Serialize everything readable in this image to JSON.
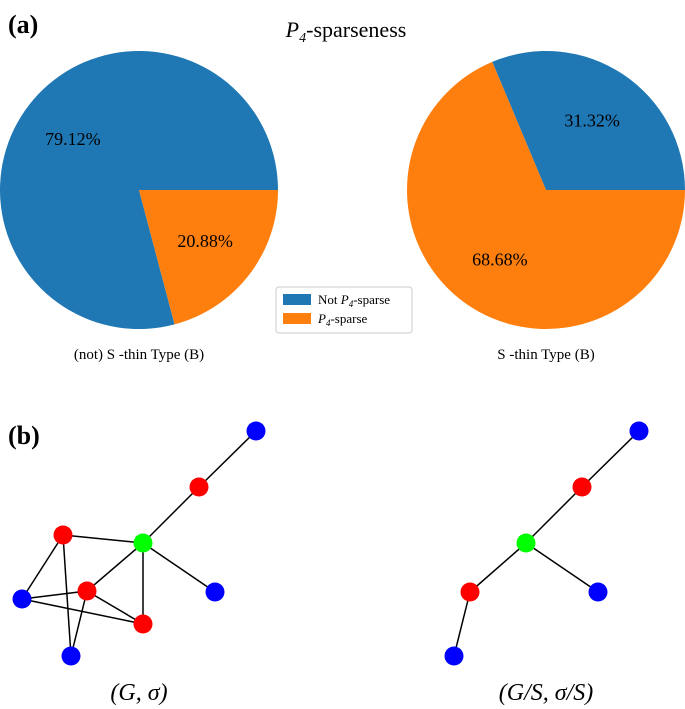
{
  "panel_a": {
    "tag": "(a)",
    "title_prefix": "P",
    "title_sub": "4",
    "title_suffix": "-sparseness"
  },
  "panel_b": {
    "tag": "(b)",
    "left_caption": "(G, σ)",
    "right_caption": "(G/S, σ/S)"
  },
  "legend": {
    "not_prefix": "Not ",
    "p": "P",
    "sub": "4",
    "suffix": "-sparse"
  },
  "colors": {
    "not_sparse": "#1f77b4",
    "sparse": "#ff7f0e",
    "node_blue": "#0000ff",
    "node_red": "#ff0000",
    "node_green": "#00ff00"
  },
  "chart_data": [
    {
      "type": "pie",
      "title": "(not) S-thin Type (B)",
      "xlabel": "(not) S -thin Type (B)",
      "slices": [
        {
          "label": "Not P4-sparse",
          "value": 79.12,
          "text": "79.12%"
        },
        {
          "label": "P4-sparse",
          "value": 20.88,
          "text": "20.88%"
        }
      ],
      "legend": [
        "Not P4-sparse",
        "P4-sparse"
      ]
    },
    {
      "type": "pie",
      "title": "S-thin Type (B)",
      "xlabel": "S -thin Type (B)",
      "slices": [
        {
          "label": "Not P4-sparse",
          "value": 31.32,
          "text": "31.32%"
        },
        {
          "label": "P4-sparse",
          "value": 68.68,
          "text": "68.68%"
        }
      ],
      "legend": [
        "Not P4-sparse",
        "P4-sparse"
      ]
    }
  ],
  "graphs": {
    "left": {
      "nodes": [
        {
          "id": "b1",
          "color": "blue"
        },
        {
          "id": "r1",
          "color": "red"
        },
        {
          "id": "g",
          "color": "green"
        },
        {
          "id": "b2",
          "color": "blue"
        },
        {
          "id": "r2",
          "color": "red"
        },
        {
          "id": "r3",
          "color": "red"
        },
        {
          "id": "b3",
          "color": "blue"
        },
        {
          "id": "r4",
          "color": "red"
        },
        {
          "id": "b4",
          "color": "blue"
        }
      ],
      "edges": [
        [
          "b1",
          "r1"
        ],
        [
          "r1",
          "g"
        ],
        [
          "g",
          "b2"
        ],
        [
          "g",
          "r2"
        ],
        [
          "g",
          "r3"
        ],
        [
          "g",
          "r4"
        ],
        [
          "r2",
          "b3"
        ],
        [
          "r2",
          "b4"
        ],
        [
          "b3",
          "r3"
        ],
        [
          "b3",
          "r4"
        ],
        [
          "b4",
          "r4"
        ],
        [
          "r4",
          "r3"
        ]
      ]
    },
    "right": {
      "nodes": [
        {
          "id": "b1",
          "color": "blue"
        },
        {
          "id": "r1",
          "color": "red"
        },
        {
          "id": "g",
          "color": "green"
        },
        {
          "id": "b2",
          "color": "blue"
        },
        {
          "id": "r2",
          "color": "red"
        },
        {
          "id": "b3",
          "color": "blue"
        }
      ],
      "edges": [
        [
          "b1",
          "r1"
        ],
        [
          "r1",
          "g"
        ],
        [
          "g",
          "b2"
        ],
        [
          "g",
          "r2"
        ],
        [
          "r2",
          "b3"
        ]
      ]
    }
  }
}
